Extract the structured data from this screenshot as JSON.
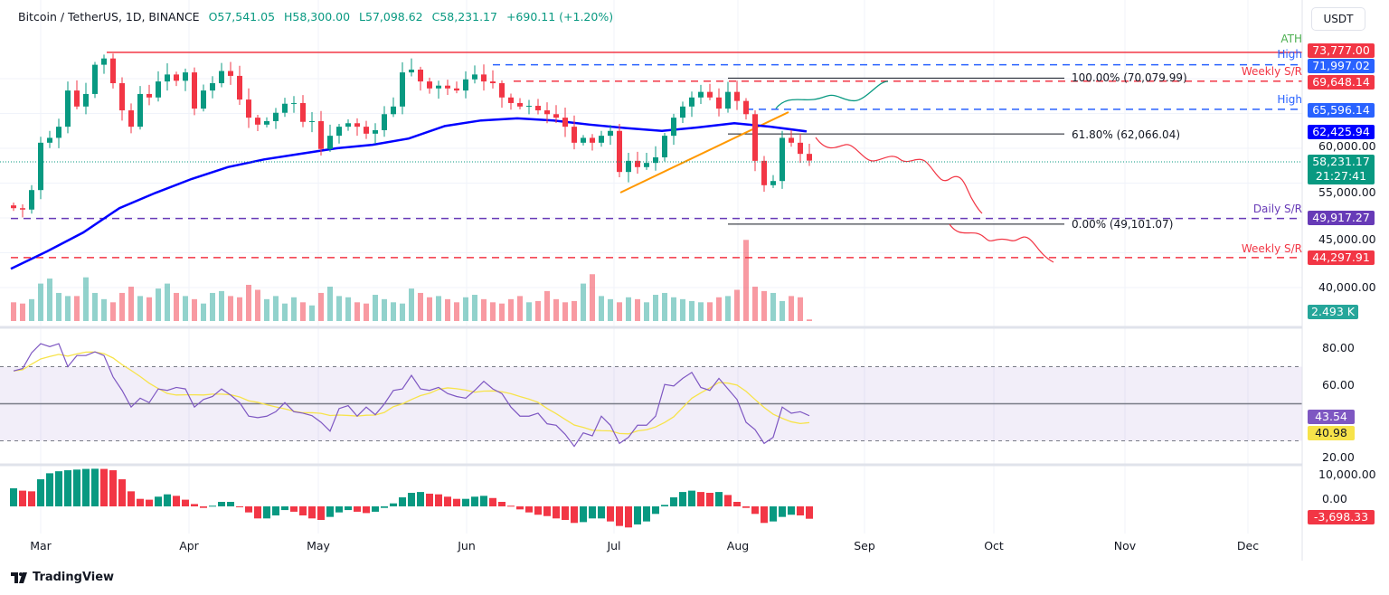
{
  "header": {
    "symbol": "Bitcoin / TetherUS, 1D, BINANCE",
    "open": "O57,541.05",
    "high": "H58,300.00",
    "low": "L57,098.62",
    "close": "C58,231.17",
    "change": "+690.11 (+1.20%)"
  },
  "currency_button": "USDT",
  "branding": {
    "logo_text": "TradingView",
    "icon": "tradingview-logo-icon"
  },
  "colors": {
    "up": "#089981",
    "down": "#f23645",
    "ma": "#0000ff",
    "rsi": "#7e57c2",
    "rsi_ma": "#f7e34a",
    "trendline": "#ff9800"
  },
  "price_axis": {
    "ticks": [
      "60,000.00",
      "55,000.00",
      "45,000.00",
      "40,000.00"
    ]
  },
  "rsi_axis": {
    "ticks": [
      "80.00",
      "60.00",
      "20.00"
    ]
  },
  "macd_axis": {
    "ticks": [
      "10,000.00",
      "0.00"
    ]
  },
  "time_axis": {
    "ticks": [
      "Mar",
      "Apr",
      "May",
      "Jun",
      "Jul",
      "Aug",
      "Sep",
      "Oct",
      "Nov",
      "Dec"
    ]
  },
  "levels": [
    {
      "label": "ATH",
      "value": "73,777.00",
      "price": 73777,
      "color": "#f23645",
      "label_color": "#4caf50"
    },
    {
      "label": "High",
      "value": "71,997.02",
      "price": 71997.02,
      "color": "#2962ff",
      "label_color": "#2962ff"
    },
    {
      "label": "Weekly S/R",
      "value": "69,648.14",
      "price": 69648.14,
      "color": "#f23645",
      "label_color": "#f23645"
    },
    {
      "label": "High",
      "value": "65,596.14",
      "price": 65596.14,
      "color": "#2962ff",
      "label_color": "#2962ff"
    },
    {
      "label": "Daily S/R",
      "value": "49,917.27",
      "price": 49917.27,
      "color": "#673ab7",
      "label_color": "#673ab7"
    },
    {
      "label": "Weekly S/R",
      "value": "44,297.91",
      "price": 44297.91,
      "color": "#f23645",
      "label_color": "#f23645"
    }
  ],
  "ma_value": "62,425.94",
  "last_price": {
    "value": "58,231.17",
    "countdown": "21:27:41"
  },
  "volume_value": "2.493 K",
  "rsi_values": {
    "rsi": "43.54",
    "ma": "40.98"
  },
  "macd_value": "-3,698.33",
  "fibonacci": [
    {
      "label": "100.00% (70,079.99)",
      "price": 70079.99
    },
    {
      "label": "61.80% (62,066.04)",
      "price": 62066.04
    },
    {
      "label": "0.00% (49,101.07)",
      "price": 49101.07
    }
  ],
  "chart_data": {
    "type": "candlestick",
    "interval": "1D",
    "closes": [
      51400,
      51200,
      54000,
      60800,
      61500,
      63100,
      68300,
      66000,
      67800,
      72000,
      72900,
      69350,
      65450,
      63100,
      67800,
      67300,
      69600,
      70600,
      69700,
      70900,
      65700,
      68300,
      69350,
      71100,
      70400,
      67000,
      64400,
      63400,
      63900,
      65100,
      66400,
      66500,
      63800,
      63900,
      59900,
      61800,
      63100,
      63600,
      63100,
      62100,
      62600,
      64900,
      66000,
      70900,
      71300,
      69600,
      68600,
      69000,
      68600,
      68300,
      69900,
      70600,
      69600,
      69350,
      67300,
      66500,
      66000,
      66100,
      65450,
      64900,
      64400,
      63100,
      60800,
      61500,
      60800,
      61800,
      62500,
      56600,
      58200,
      57300,
      57900,
      58700,
      61800,
      64400,
      66000,
      67300,
      68100,
      67300,
      65700,
      68100,
      66800,
      64900,
      58200,
      54700,
      55300,
      61500,
      60800,
      59200,
      58231.17
    ],
    "ma100": [
      42700,
      45200,
      47900,
      51400,
      53600,
      55600,
      57300,
      58400,
      59200,
      60000,
      60500,
      61400,
      63200,
      64000,
      64300,
      64000,
      63400,
      62900,
      62500,
      63000,
      63600,
      63100,
      62425.94
    ],
    "volume_k": [
      30,
      28,
      35,
      60,
      68,
      45,
      40,
      40,
      70,
      45,
      35,
      30,
      45,
      55,
      40,
      38,
      52,
      60,
      45,
      40,
      35,
      28,
      45,
      48,
      40,
      38,
      58,
      50,
      35,
      40,
      28,
      38,
      30,
      25,
      45,
      55,
      40,
      38,
      30,
      28,
      42,
      35,
      30,
      28,
      52,
      45,
      38,
      40,
      35,
      30,
      38,
      42,
      35,
      30,
      28,
      35,
      40,
      30,
      32,
      48,
      35,
      30,
      32,
      60,
      75,
      40,
      35,
      30,
      38,
      35,
      30,
      42,
      45,
      38,
      35,
      32,
      30,
      30,
      38,
      40,
      50,
      130,
      55,
      48,
      45,
      32,
      40,
      38,
      2.493
    ],
    "rsi": [
      67.7,
      69,
      77.5,
      82.4,
      80.8,
      82.4,
      70,
      76,
      76,
      78,
      76,
      64.5,
      57.2,
      48.2,
      53,
      50.6,
      58,
      57.2,
      58.8,
      58,
      48.2,
      52.3,
      53.9,
      58,
      54.7,
      50.6,
      43.3,
      42.5,
      43.3,
      45.7,
      50.6,
      45.7,
      44.9,
      43.6,
      40,
      35.2,
      47.4,
      49,
      43.3,
      48.2,
      44.1,
      49.9,
      57.2,
      58,
      65.3,
      58,
      57.2,
      58.8,
      55.5,
      53.9,
      53,
      57.2,
      62.1,
      58,
      55.5,
      48.2,
      43.3,
      43.3,
      44.9,
      39.2,
      38.4,
      33.5,
      27,
      34.3,
      32.7,
      43.3,
      38.4,
      28.6,
      31.9,
      38.4,
      38.4,
      43.3,
      60.4,
      59.6,
      63.7,
      66.9,
      58.8,
      57.2,
      63.7,
      58,
      52.3,
      40,
      36,
      28.6,
      31.9,
      48.2,
      44.9,
      45.7,
      43.54
    ],
    "rsi_bands": {
      "upper": 70,
      "middle": 50,
      "lower": 30
    },
    "macd_histogram": [
      5400,
      4700,
      4500,
      8100,
      9900,
      10500,
      10800,
      11000,
      11200,
      11250,
      11200,
      10800,
      8100,
      4500,
      2250,
      2000,
      2900,
      3600,
      3150,
      2000,
      700,
      -450,
      200,
      1350,
      1350,
      0,
      -1800,
      -3600,
      -3600,
      -2700,
      -1100,
      -1600,
      -2700,
      -3600,
      -4050,
      -3150,
      -1800,
      -1100,
      -1600,
      -2000,
      -1600,
      -450,
      900,
      2700,
      4050,
      4300,
      3800,
      3600,
      2900,
      2250,
      2250,
      2900,
      3150,
      2500,
      1350,
      200,
      -900,
      -1800,
      -2500,
      -2900,
      -3600,
      -4050,
      -4950,
      -4700,
      -3600,
      -3600,
      -4500,
      -5850,
      -6300,
      -5400,
      -4500,
      -2250,
      450,
      2700,
      4300,
      4700,
      4300,
      4050,
      4300,
      3400,
      1350,
      -450,
      -2250,
      -4950,
      -4500,
      -3150,
      -2500,
      -2700,
      -3698.33
    ]
  }
}
